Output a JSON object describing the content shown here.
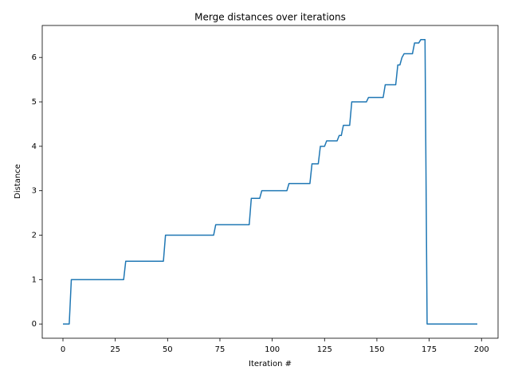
{
  "chart_data": {
    "type": "line",
    "title": "Merge distances over iterations",
    "x_label": "Iteration #",
    "y_label": "Distance",
    "color": "#1f77b4",
    "x": [
      0,
      3,
      4,
      29,
      30,
      48,
      49,
      72,
      73,
      89,
      90,
      94,
      95,
      107,
      108,
      118,
      119,
      122,
      123,
      125,
      126,
      131,
      132,
      133,
      134,
      137,
      138,
      145,
      146,
      153,
      154,
      159,
      160,
      161,
      162,
      163,
      167,
      168,
      170,
      171,
      173,
      174,
      198
    ],
    "values": [
      0,
      0,
      1,
      1,
      1.414,
      1.414,
      2,
      2,
      2.236,
      2.236,
      2.828,
      2.828,
      3,
      3,
      3.162,
      3.162,
      3.606,
      3.606,
      4,
      4,
      4.123,
      4.123,
      4.243,
      4.243,
      4.472,
      4.472,
      5,
      5,
      5.099,
      5.099,
      5.385,
      5.385,
      5.831,
      5.831,
      6,
      6.083,
      6.083,
      6.325,
      6.325,
      6.403,
      6.403,
      0,
      0
    ],
    "xlim": [
      -9.9,
      207.9
    ],
    "ylim": [
      -0.32,
      6.72
    ],
    "xticks": [
      0,
      25,
      50,
      75,
      100,
      125,
      150,
      175,
      200
    ],
    "yticks": [
      0,
      1,
      2,
      3,
      4,
      5,
      6
    ]
  }
}
